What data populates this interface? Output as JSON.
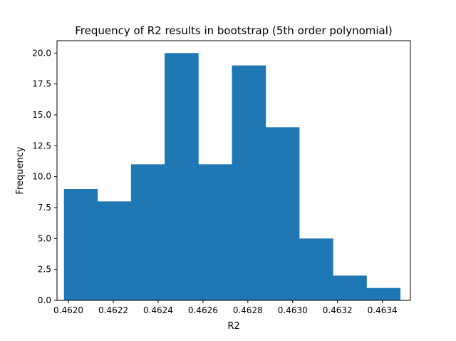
{
  "chart_data": {
    "type": "bar",
    "title": "Frequency of R2 results in bootstrap (5th order polynomial)",
    "xlabel": "R2",
    "ylabel": "Frequency",
    "xlim": [
      0.461949,
      0.463525
    ],
    "ylim": [
      0,
      21
    ],
    "bin_edges": [
      0.46198,
      0.462129,
      0.462279,
      0.462429,
      0.462579,
      0.462729,
      0.462879,
      0.463029,
      0.463179,
      0.463329,
      0.463479
    ],
    "values": [
      9,
      8,
      11,
      20,
      11,
      19,
      14,
      5,
      2,
      1
    ],
    "xticks": [
      0.462,
      0.4622,
      0.4624,
      0.4626,
      0.4628,
      0.463,
      0.4632,
      0.4634
    ],
    "xtick_labels": [
      "0.4620",
      "0.4622",
      "0.4624",
      "0.4626",
      "0.4628",
      "0.4630",
      "0.4632",
      "0.4634"
    ],
    "yticks": [
      0,
      2.5,
      5,
      7.5,
      10,
      12.5,
      15,
      17.5,
      20
    ],
    "ytick_labels": [
      "0.0",
      "2.5",
      "5.0",
      "7.5",
      "10.0",
      "12.5",
      "15.0",
      "17.5",
      "20.0"
    ],
    "grid": false,
    "bar_color": "#1f77b4"
  }
}
